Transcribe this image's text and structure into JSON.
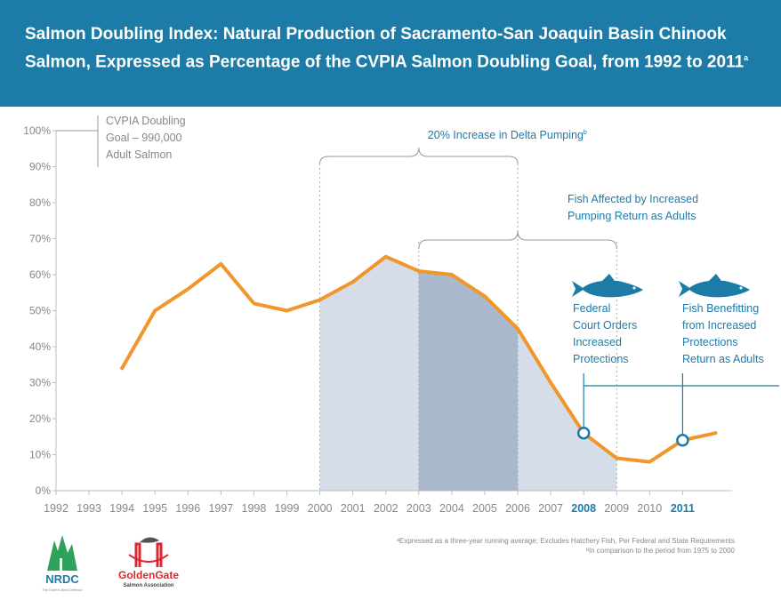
{
  "header": {
    "title": "Salmon Doubling Index: Natural Production of Sacramento-San Joaquin Basin Chinook Salmon, Expressed as Percentage of the CVPIA Salmon Doubling Goal, from 1992 to 2011",
    "title_note": "a"
  },
  "colors": {
    "header_bg": "#1d7ba8",
    "line": "#f0962a",
    "shade_light": "#d5dde9",
    "shade_dark": "#a9b8cd",
    "annotation": "#1d7ba8",
    "axis_text": "#888888"
  },
  "chart_data": {
    "type": "line",
    "x": [
      1994,
      1995,
      1996,
      1997,
      1998,
      1999,
      2000,
      2001,
      2002,
      2003,
      2004,
      2005,
      2006,
      2007,
      2008,
      2009,
      2010,
      2011,
      2012
    ],
    "series": [
      {
        "values": [
          34,
          50,
          56,
          63,
          52,
          50,
          53,
          58,
          65,
          61,
          60,
          54,
          45,
          30,
          16,
          9,
          8,
          14,
          16
        ]
      }
    ],
    "x_ticks": [
      "1992",
      "1993",
      "1994",
      "1995",
      "1996",
      "1997",
      "1998",
      "1999",
      "2000",
      "2001",
      "2002",
      "2003",
      "2004",
      "2005",
      "2006",
      "2007",
      "2008",
      "2009",
      "2010",
      "2011"
    ],
    "highlight_ticks": [
      "2008",
      "2011"
    ],
    "y_ticks": [
      "0%",
      "10%",
      "20%",
      "30%",
      "40%",
      "50%",
      "60%",
      "70%",
      "80%",
      "90%",
      "100%"
    ],
    "xlim": [
      1992,
      2012.5
    ],
    "ylim": [
      0,
      100
    ],
    "markers": [
      {
        "x": 2008,
        "y": 16
      },
      {
        "x": 2011,
        "y": 14
      }
    ],
    "shaded_ranges": [
      {
        "from": 2000,
        "to": 2009,
        "tone": "light"
      },
      {
        "from": 2003,
        "to": 2006,
        "tone": "dark"
      }
    ],
    "goal_label": [
      "CVPIA Doubling",
      "Goal – 990,000",
      "Adult Salmon"
    ],
    "annotations": {
      "pumping": "20% Increase in Delta Pumping",
      "pumping_note": "b",
      "return_adults": [
        "Fish Affected by Increased",
        "Pumping Return as Adults"
      ],
      "court_orders": [
        "Federal",
        "Court Orders",
        "Increased",
        "Protections"
      ],
      "benefitting": [
        "Fish Benefitting",
        "from Increased",
        "Protections",
        "Return as Adults"
      ]
    }
  },
  "footnotes": [
    "ᵃExpressed as a three-year running average; Excludes Hatchery Fish, Per Federal and State Requirements",
    "ᵇIn comparison to the period from 1975 to 2000"
  ],
  "logos": {
    "nrdc": "NRDC",
    "nrdc_tagline": "The Earth's Best Defense",
    "golden_gate": "GoldenGate",
    "salmon_association": "Salmon Association"
  }
}
